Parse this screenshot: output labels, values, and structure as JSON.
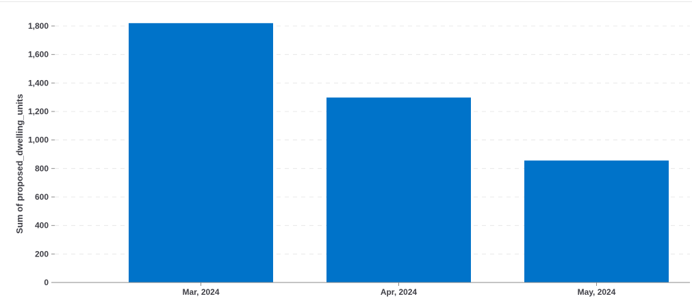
{
  "chart_data": {
    "type": "bar",
    "categories": [
      "Mar, 2024",
      "Apr, 2024",
      "May, 2024"
    ],
    "values": [
      1820,
      1298,
      856
    ],
    "title": "",
    "xlabel": "",
    "ylabel": "Sum of proposed_dwelling_units",
    "ylim": [
      0,
      1800
    ],
    "yticks": [
      0,
      200,
      400,
      600,
      800,
      1000,
      1200,
      1400,
      1600,
      1800
    ],
    "ytick_labels": [
      "0",
      "200",
      "400",
      "600",
      "800",
      "1,000",
      "1,200",
      "1,400",
      "1,600",
      "1,800"
    ],
    "grid": true,
    "legend": "none",
    "bar_color": "#0073c9",
    "grid_color": "#e8e8e8",
    "axis_color": "#8a8a8a"
  }
}
